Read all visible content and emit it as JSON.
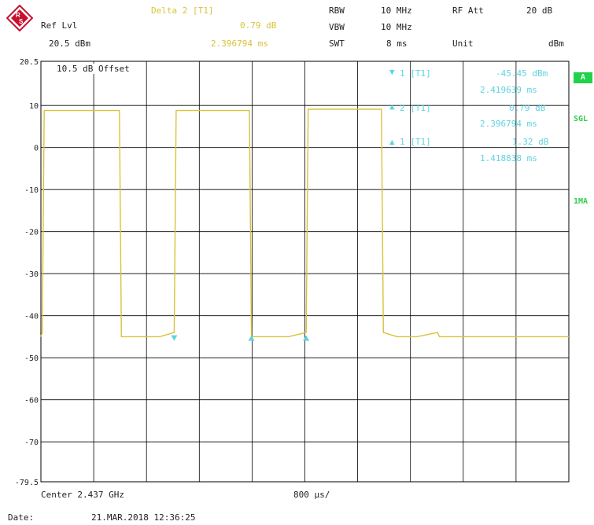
{
  "header": {
    "ref_lvl_label": "Ref Lvl",
    "ref_lvl_value": "20.5 dBm",
    "delta_title": "Delta 2 [T1]",
    "delta_value_db": "0.79 dB",
    "delta_value_time": "2.396794 ms",
    "rbw_label": "RBW",
    "rbw_value": "10 MHz",
    "vbw_label": "VBW",
    "vbw_value": "10 MHz",
    "swt_label": "SWT",
    "swt_value": "8 ms",
    "rf_att_label": "RF Att",
    "rf_att_value": "20 dB",
    "unit_label": "Unit",
    "unit_value": "dBm"
  },
  "offset_label": "10.5 dB Offset",
  "markers": [
    {
      "label": "1 [T1]",
      "value1": "-45.45 dBm",
      "value2": "2.419639 ms"
    },
    {
      "label": "2 [T1]",
      "value1": "0.79 dB",
      "value2": "2.396794 ms"
    },
    {
      "label": "1 [T1]",
      "value1": "1.32 dB",
      "value2": "1.418838 ms"
    }
  ],
  "side": {
    "a": "A",
    "sgl": "SGL",
    "ma": "1MA"
  },
  "footer": {
    "center": "Center 2.437 GHz",
    "span": "800 µs/",
    "date_label": "Date:",
    "date_value": "21.MAR.2018  12:36:25"
  },
  "colors": {
    "trace": "#d9c33a",
    "marker": "#5fd3e0",
    "grid": "#000000",
    "status": "#22d24a"
  },
  "chart_data": {
    "type": "line",
    "title": "",
    "xlabel": "",
    "ylabel": "",
    "x_unit": "ms",
    "xlim": [
      0,
      8
    ],
    "ylim": [
      -79.5,
      20.5
    ],
    "grid": true,
    "y_ticks": [
      "20.5",
      "10",
      "0",
      "-10",
      "-20",
      "-30",
      "-40",
      "-50",
      "-60",
      "-70",
      "-79.5"
    ],
    "series": [
      {
        "x": [
          0,
          0.02,
          0.05,
          1.19,
          1.22,
          1.5,
          1.8,
          2.02,
          2.05,
          3.16,
          3.19,
          3.35,
          3.55,
          3.75,
          4.02,
          4.05,
          5.16,
          5.19,
          5.4,
          5.7,
          6.01,
          6.04,
          8.0
        ],
        "y": [
          -45,
          -44,
          8.8,
          8.8,
          -45,
          -45,
          -45,
          -44,
          8.8,
          8.8,
          -45,
          -45,
          -45,
          -45,
          -44,
          9.1,
          9.1,
          -44,
          -45,
          -45,
          -44,
          -45,
          -45
        ]
      }
    ],
    "marker_points": [
      {
        "x": 2.02,
        "y": -45.4,
        "shape": "down"
      },
      {
        "x": 3.19,
        "y": -45.4,
        "shape": "up"
      },
      {
        "x": 4.02,
        "y": -45.4,
        "shape": "up"
      }
    ]
  }
}
